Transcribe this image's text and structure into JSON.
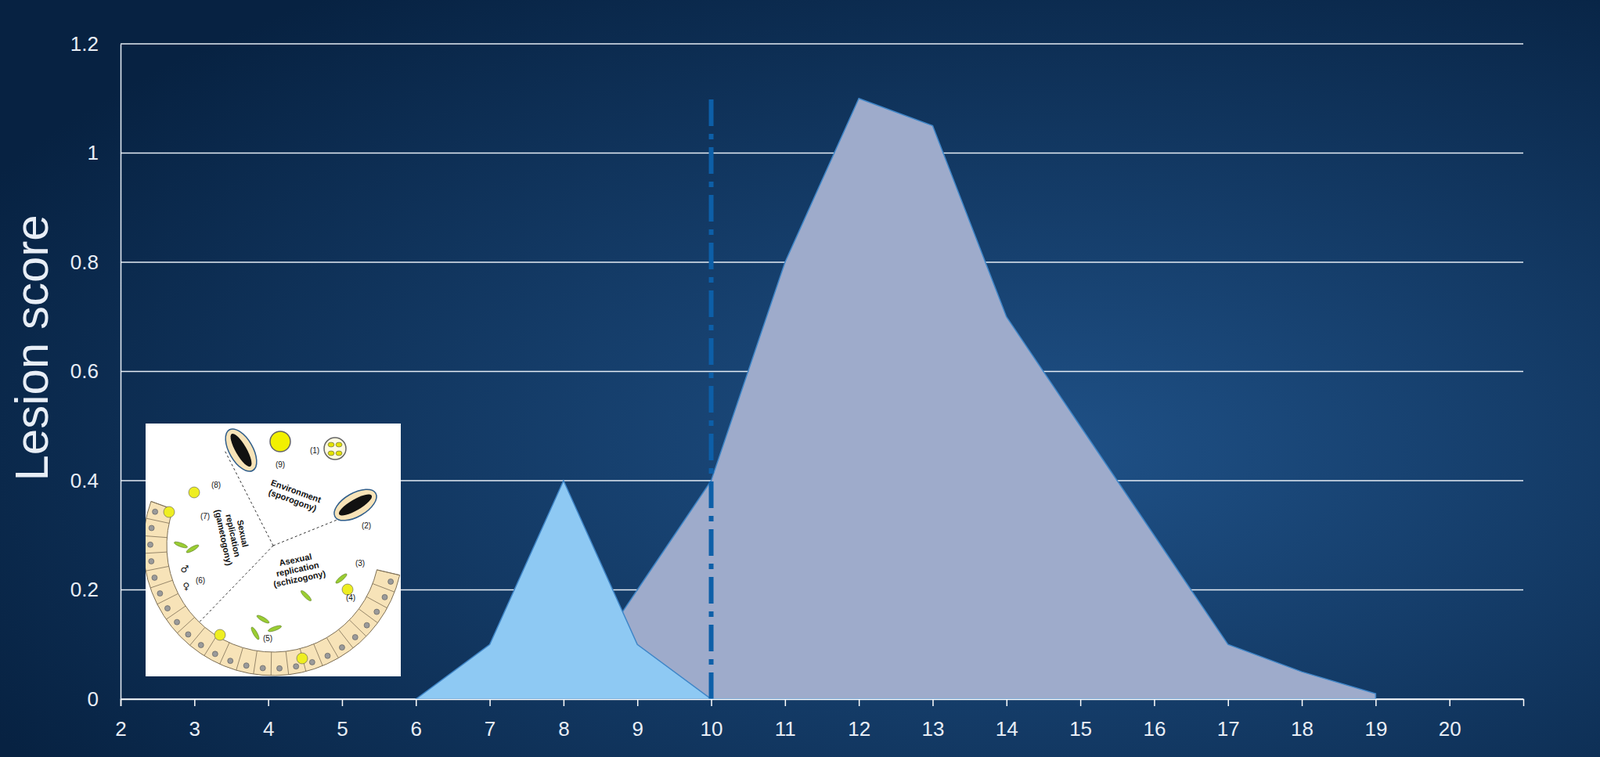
{
  "chart_data": {
    "type": "area",
    "x": [
      6,
      7,
      8,
      9,
      10,
      11,
      12,
      13,
      14,
      15,
      16,
      17,
      18,
      19
    ],
    "series": [
      {
        "color": "#9eabcb",
        "values": [
          null,
          null,
          0,
          0.2,
          0.4,
          0.8,
          1.1,
          1.05,
          0.7,
          0.5,
          0.3,
          0.1,
          0.05,
          0.01
        ]
      },
      {
        "color": "#8ec9f3",
        "values": [
          0,
          0.1,
          0.4,
          0.1,
          0,
          null,
          null,
          null,
          null,
          null,
          null,
          null,
          null,
          null
        ]
      }
    ],
    "xlim": [
      2,
      21
    ],
    "ylim": [
      0,
      1.2
    ],
    "xticks": [
      2,
      3,
      4,
      5,
      6,
      7,
      8,
      9,
      10,
      11,
      12,
      13,
      14,
      15,
      16,
      17,
      18,
      19,
      20
    ],
    "yticks": [
      0,
      0.2,
      0.4,
      0.6,
      0.8,
      1,
      1.2
    ],
    "ylabel": "Lesion score",
    "grid": true,
    "reference_line": {
      "x": 10,
      "y_from": 0,
      "y_to": 1.1,
      "color": "#0d5fa8",
      "line_style": "dashdot"
    }
  },
  "inset": {
    "sectors": [
      "Environment (sporogony)",
      "Asexual replication (schizogony)",
      "Sexual replication (gametogony)"
    ],
    "stages": [
      "(1)",
      "(2)",
      "(3)",
      "(4)",
      "(5)",
      "(6)",
      "(7)",
      "(8)",
      "(9)"
    ],
    "symbols": [
      "♂",
      "♀"
    ]
  }
}
